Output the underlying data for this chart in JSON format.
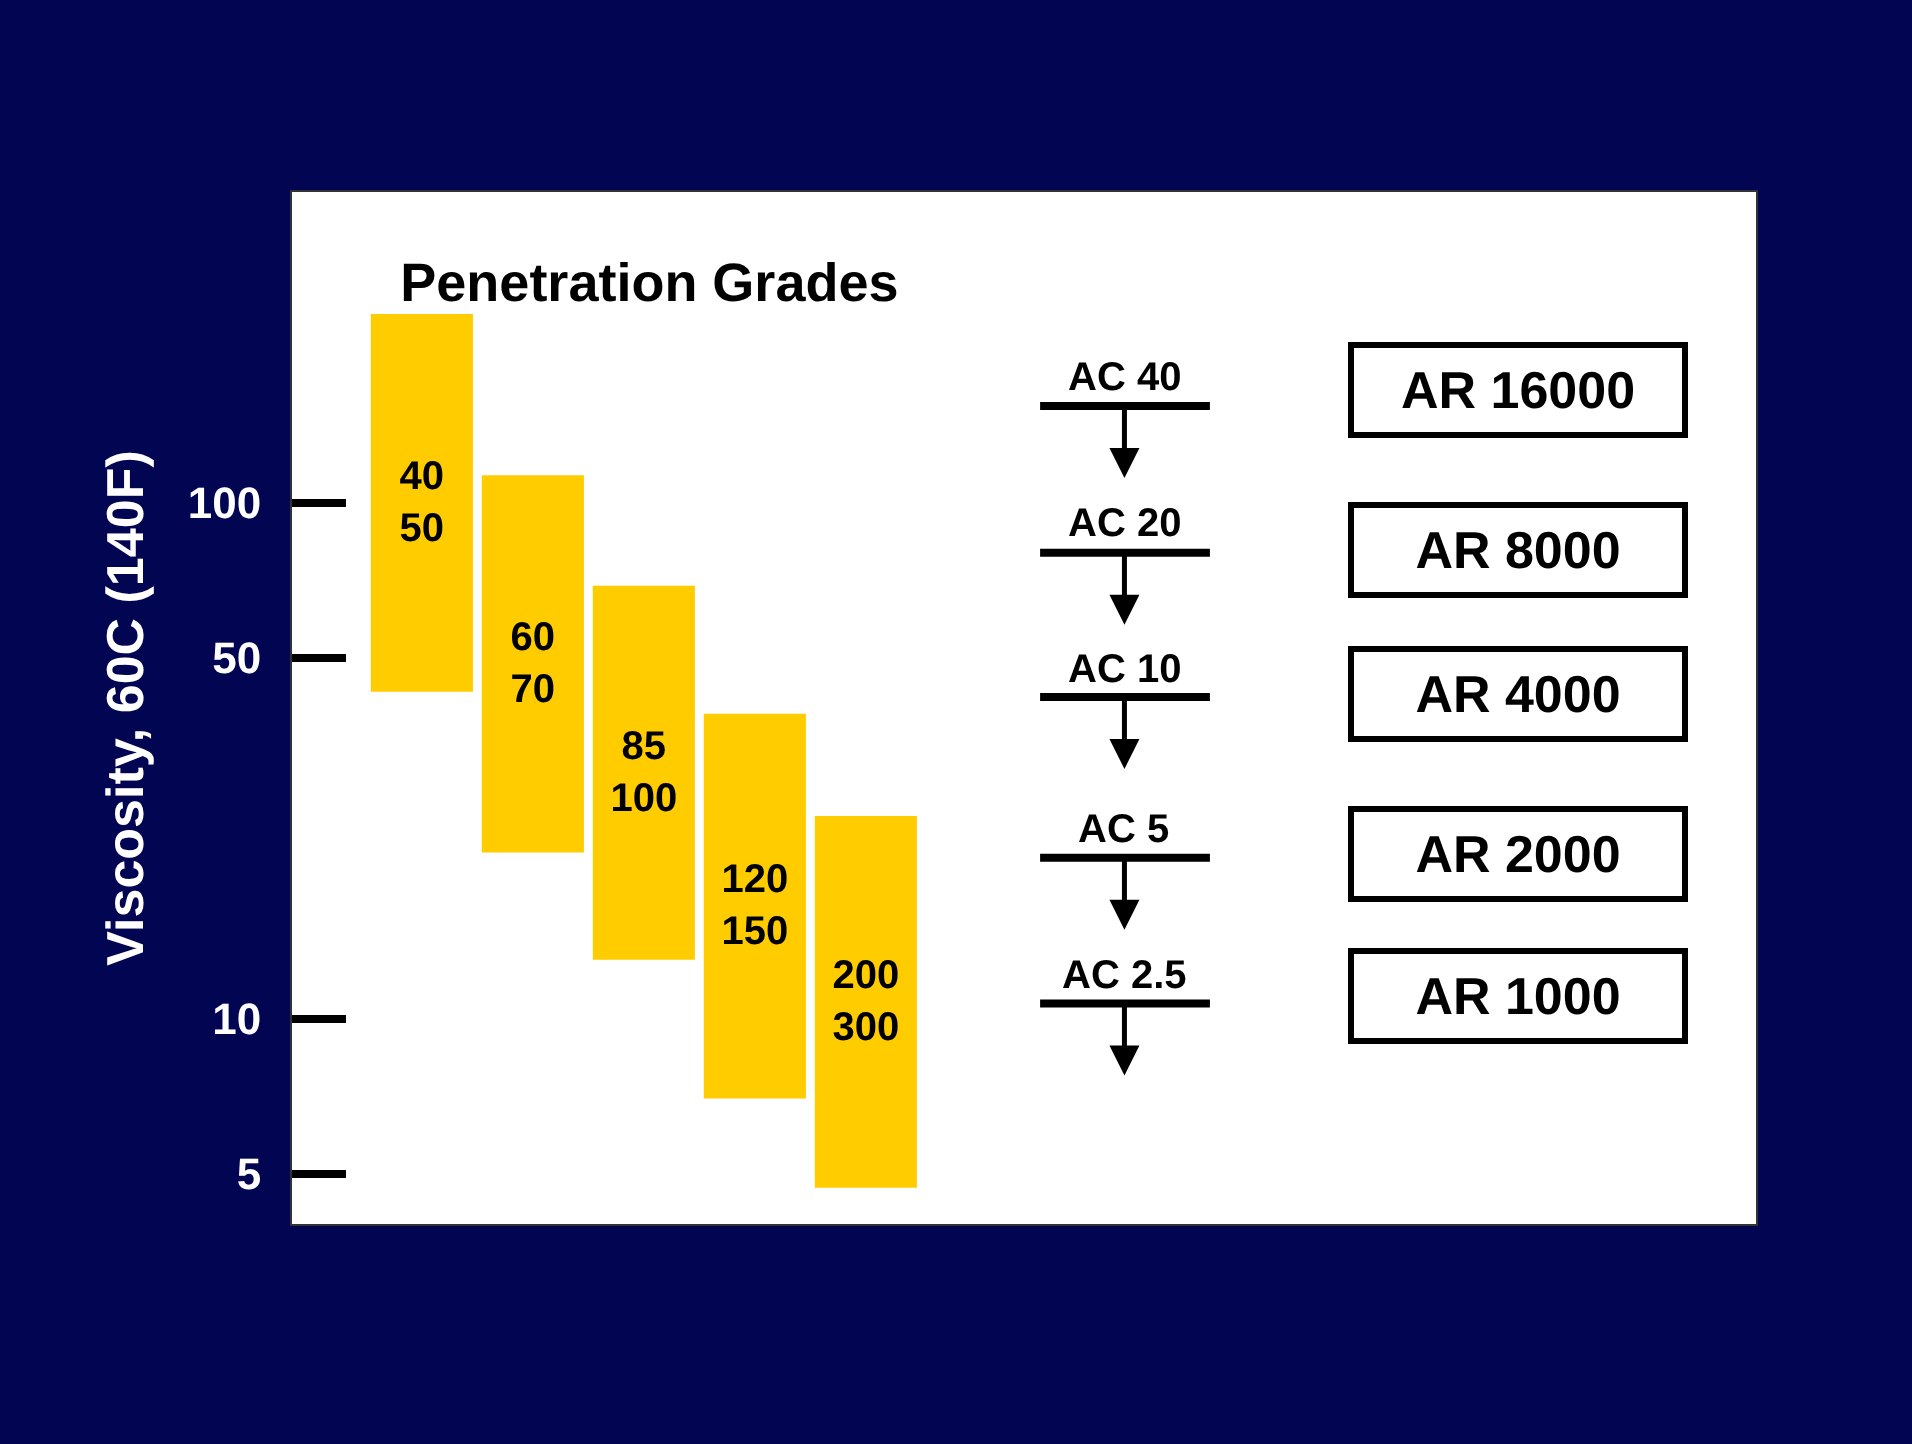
{
  "chart_data": {
    "type": "bar",
    "title": "Penetration Grades",
    "ylabel": "Viscosity, 60C (140F)",
    "categories": [
      "40\n50",
      "60\n70",
      "85\n100",
      "120\n150",
      "200\n300"
    ],
    "base": [
      43,
      21,
      13,
      7,
      4.7
    ],
    "values": [
      189,
      92,
      56,
      32,
      20
    ],
    "color": "#ffcc00",
    "log": true,
    "ylim": [
      4,
      400
    ],
    "yticks": [
      5,
      10,
      50,
      100
    ],
    "tick_labels": "y",
    "ref_lines": [
      {
        "axis": "y",
        "value": 154,
        "label": "AC 40"
      },
      {
        "axis": "y",
        "value": 80,
        "label": "AC 20"
      },
      {
        "axis": "y",
        "value": 42,
        "label": "AC 10"
      },
      {
        "axis": "y",
        "value": 20.5,
        "label": "AC 5"
      },
      {
        "axis": "y",
        "value": 10.7,
        "label": "AC 2.5"
      }
    ],
    "annotations": [
      "AR 16000",
      "AR 8000",
      "AR 4000",
      "AR 2000",
      "AR 1000"
    ]
  }
}
